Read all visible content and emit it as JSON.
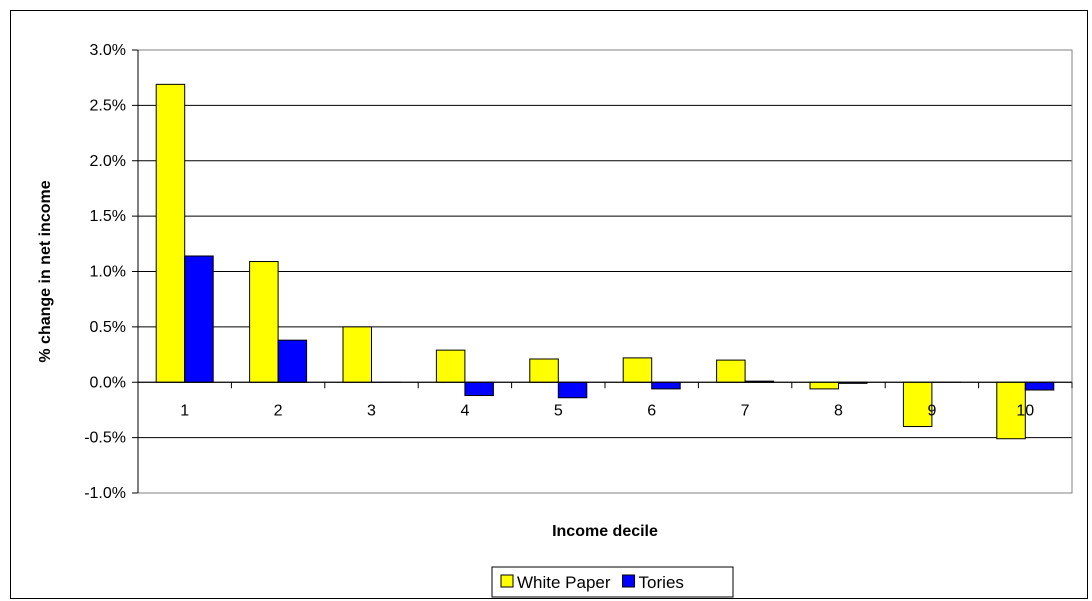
{
  "chart_data": {
    "type": "bar",
    "xlabel": "Income decile",
    "ylabel": "% change in net income",
    "categories": [
      "1",
      "2",
      "3",
      "4",
      "5",
      "6",
      "7",
      "8",
      "9",
      "10"
    ],
    "ylim": [
      -1.0,
      3.0
    ],
    "ytick_step": 0.5,
    "ytick_labels": [
      "-1.0%",
      "-0.5%",
      "0.0%",
      "0.5%",
      "1.0%",
      "1.5%",
      "2.0%",
      "2.5%",
      "3.0%"
    ],
    "grid": true,
    "legend_position": "bottom",
    "series": [
      {
        "name": "White Paper",
        "color": "#FFFF00",
        "values": [
          2.69,
          1.09,
          0.5,
          0.29,
          0.21,
          0.22,
          0.2,
          -0.06,
          -0.4,
          -0.51
        ]
      },
      {
        "name": "Tories",
        "color": "#0000FF",
        "values": [
          1.14,
          0.38,
          0.0,
          -0.12,
          -0.14,
          -0.06,
          0.01,
          -0.01,
          0.0,
          -0.07
        ]
      }
    ]
  }
}
